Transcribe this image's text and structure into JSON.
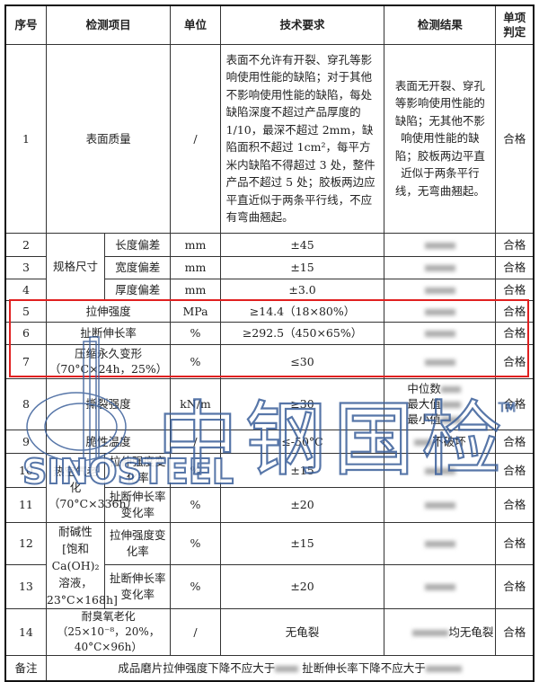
{
  "headers": [
    "序号",
    "检测项目",
    "单位",
    "技术要求",
    "检测结果",
    "单项判定"
  ],
  "rows": {
    "r1": {
      "no": "1",
      "item": "表面质量",
      "unit": "/",
      "req": "表面不允许有开裂、穿孔等影响使用性能的缺陷；对于其他不影响使用性能的缺陷，每处缺陷深度不超过产品厚度的 1/10，最深不超过 2mm，缺陷面积不超过 1cm²，每平方米内缺陷不得超过 3 处，整件产品不超过 5 处；胶板两边应平直近似于两条平行线，不应有弯曲翘起。",
      "res": "表面无开裂、穿孔等影响使用性能的缺陷；无其他不影响使用性能的缺陷；胶板两边平直近似于两条平行线，无弯曲翘起。",
      "judge": "合格"
    },
    "group_size": "规格尺寸",
    "r2": {
      "no": "2",
      "item": "长度偏差",
      "unit": "mm",
      "req": "±45",
      "judge": "合格"
    },
    "r3": {
      "no": "3",
      "item": "宽度偏差",
      "unit": "mm",
      "req": "±15",
      "judge": "合格"
    },
    "r4": {
      "no": "4",
      "item": "厚度偏差",
      "unit": "mm",
      "req": "±3.0",
      "judge": "合格"
    },
    "r5": {
      "no": "5",
      "item": "拉伸强度",
      "unit": "MPa",
      "req": "≥14.4（18×80%）",
      "judge": "合格"
    },
    "r6": {
      "no": "6",
      "item": "扯断伸长率",
      "unit": "%",
      "req": "≥292.5（450×65%）",
      "judge": "合格"
    },
    "r7": {
      "no": "7",
      "item": "压缩永久变形",
      "item2": "（70°C×24h，25%）",
      "unit": "%",
      "req": "≤30",
      "judge": "合格"
    },
    "r8": {
      "no": "8",
      "item": "撕裂强度",
      "unit": "kN/m",
      "req": "≥30",
      "res": [
        "中位数",
        "最大值",
        "最小值"
      ],
      "judge": "合格"
    },
    "r9": {
      "no": "9",
      "item": "脆性温度",
      "unit": "/",
      "req": "≤-50°C",
      "res": "不破坏",
      "judge": "合格"
    },
    "group_heat": "热空气老化",
    "group_heat2": "（70°C×336h）",
    "r10": {
      "no": "10",
      "item": "拉伸强度变化率",
      "unit": "%",
      "req": "±15",
      "judge": "合格"
    },
    "r11": {
      "no": "11",
      "item": "扯断伸长率变化率",
      "unit": "%",
      "req": "±20",
      "judge": "合格"
    },
    "group_alk": "耐碱性",
    "group_alk2": "[饱和 Ca(OH)₂",
    "group_alk3": "溶液，",
    "group_alk4": "23°C×168h]",
    "r12": {
      "no": "12",
      "item": "拉伸强度变化率",
      "unit": "%",
      "req": "±15",
      "judge": "合格"
    },
    "r13": {
      "no": "13",
      "item": "扯断伸长率变化率",
      "unit": "%",
      "req": "±20",
      "judge": "合格"
    },
    "r14": {
      "no": "14",
      "item": "耐臭氧老化",
      "item2": "（25×10⁻⁸，20%，40°C×96h）",
      "unit": "/",
      "req": "无龟裂",
      "res": "均无龟裂",
      "judge": "合格"
    },
    "note": {
      "label": "备注",
      "text1": "成品磨片拉伸强度下降不应大于",
      "text2": "扯断伸长率下降不应大于"
    }
  },
  "watermark": {
    "cn": "中钢国检",
    "en": "SINOSTEEL",
    "tm": "TM"
  },
  "colors": {
    "highlight": "#e02020",
    "watermark": "#3a5f9a"
  }
}
